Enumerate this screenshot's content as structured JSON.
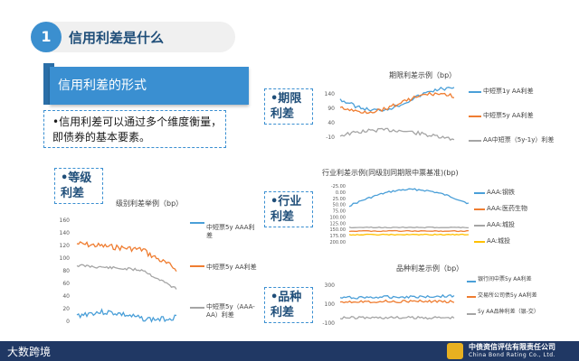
{
  "header": {
    "number": "1",
    "title": "信用利差是什么"
  },
  "banner": {
    "text": "信用利差的形式"
  },
  "description": {
    "text": "•信用利差可以通过多个维度衡量，即债券的基本要素。"
  },
  "tags": {
    "grade": "•等级利差",
    "term": "•期限利差",
    "industry": "•行业利差",
    "variety": "•品种利差"
  },
  "charts": {
    "grade": {
      "title": "级别利差举例（bp）",
      "yticks": [
        "0",
        "20",
        "40",
        "60",
        "80",
        "100",
        "120",
        "140",
        "160"
      ],
      "legend": [
        "中短票5y AAA利差",
        "中短票5y AA利差",
        "中短票5y（AAA-AA）利差"
      ],
      "colors": [
        "#4a9fd8",
        "#ef7d31",
        "#a5a5a5"
      ]
    },
    "term": {
      "title": "期限利差示例（bp）",
      "yticks": [
        "140",
        "90",
        "40",
        "-10"
      ],
      "legend": [
        "中短票1y AA利差",
        "中短票5y AA利差",
        "AA中短票（5y-1y）利差"
      ],
      "colors": [
        "#4a9fd8",
        "#ef7d31",
        "#a5a5a5"
      ]
    },
    "industry": {
      "title": "行业利差示例(同级别同期限中票基准)(bp)",
      "yticks": [
        "200.00",
        "175.00",
        "150.00",
        "125.00",
        "100.00",
        "75.00",
        "50.00",
        "25.00",
        "0.00",
        "-25.00"
      ],
      "legend": [
        "AAA:钢铁",
        "AAA:医药生物",
        "AAA:城投",
        "AA:城投"
      ],
      "colors": [
        "#4a9fd8",
        "#ef7d31",
        "#a5a5a5",
        "#ffc000"
      ]
    },
    "variety": {
      "title": "品种利差示例（bp）",
      "yticks": [
        "300",
        "100",
        "-100"
      ],
      "legend": [
        "银行间中票5y AA利差",
        "交易所公司债5y AA利差",
        "5y AA品种利差（银-交）"
      ],
      "colors": [
        "#4a9fd8",
        "#ef7d31",
        "#a5a5a5"
      ]
    }
  },
  "footer": {
    "left": "大数跨境",
    "company": "中债资信评估有限责任公司",
    "company_en": "China Bond Rating Co., Ltd."
  }
}
